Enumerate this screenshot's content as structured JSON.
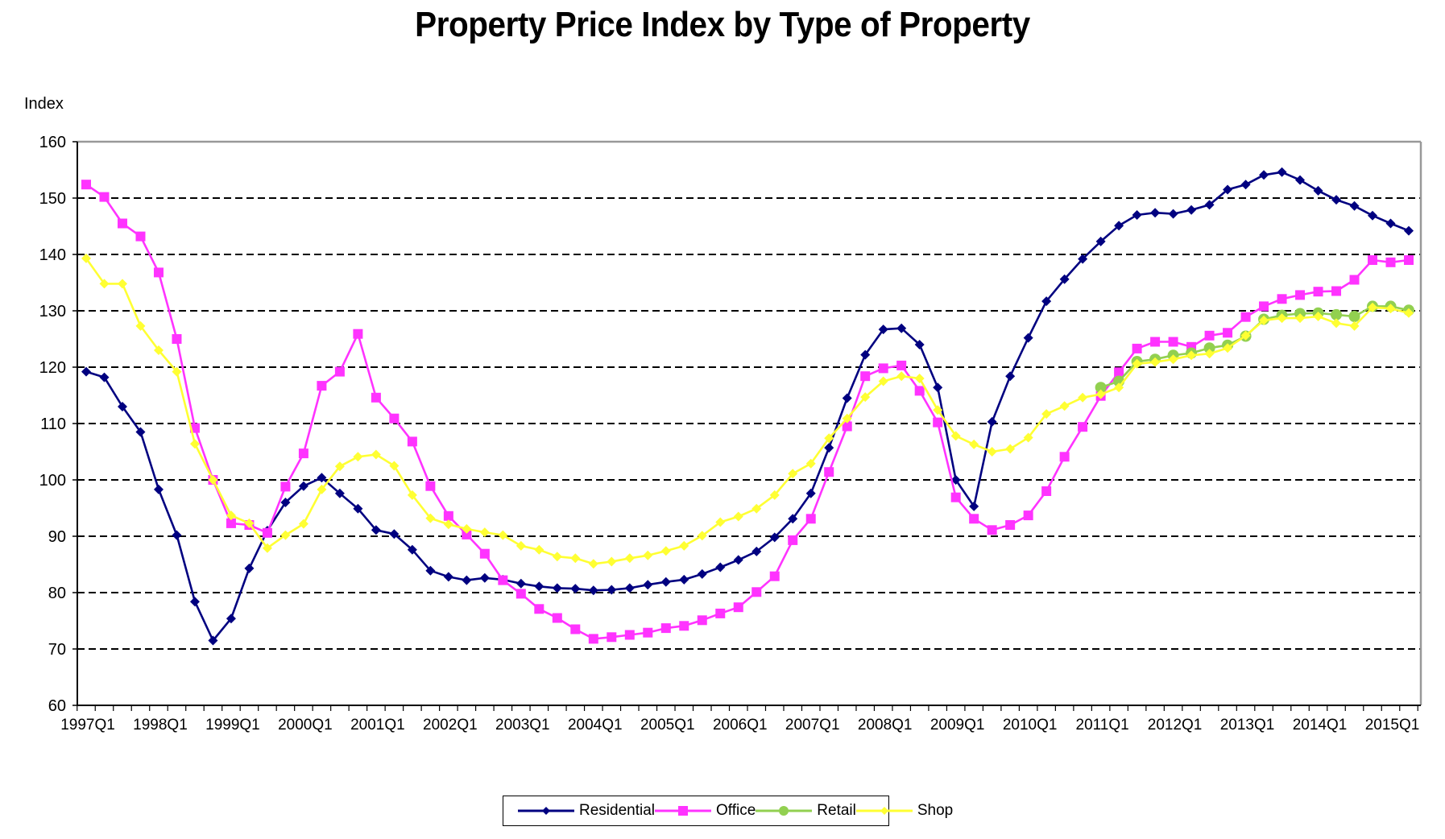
{
  "chart_data": {
    "type": "line",
    "title": "Property Price Index by Type of Property",
    "xlabel": "",
    "ylabel": "Index",
    "ylim": [
      60,
      160
    ],
    "yticks": [
      60,
      70,
      80,
      90,
      100,
      110,
      120,
      130,
      140,
      150,
      160
    ],
    "grid": "horizontal dashed",
    "legend_position": "bottom",
    "x": [
      "1997Q1",
      "1997Q2",
      "1997Q3",
      "1997Q4",
      "1998Q1",
      "1998Q2",
      "1998Q3",
      "1998Q4",
      "1999Q1",
      "1999Q2",
      "1999Q3",
      "1999Q4",
      "2000Q1",
      "2000Q2",
      "2000Q3",
      "2000Q4",
      "2001Q1",
      "2001Q2",
      "2001Q3",
      "2001Q4",
      "2002Q1",
      "2002Q2",
      "2002Q3",
      "2002Q4",
      "2003Q1",
      "2003Q2",
      "2003Q3",
      "2003Q4",
      "2004Q1",
      "2004Q2",
      "2004Q3",
      "2004Q4",
      "2005Q1",
      "2005Q2",
      "2005Q3",
      "2005Q4",
      "2006Q1",
      "2006Q2",
      "2006Q3",
      "2006Q4",
      "2007Q1",
      "2007Q2",
      "2007Q3",
      "2007Q4",
      "2008Q1",
      "2008Q2",
      "2008Q3",
      "2008Q4",
      "2009Q1",
      "2009Q2",
      "2009Q3",
      "2009Q4",
      "2010Q1",
      "2010Q2",
      "2010Q3",
      "2010Q4",
      "2011Q1",
      "2011Q2",
      "2011Q3",
      "2011Q4",
      "2012Q1",
      "2012Q2",
      "2012Q3",
      "2012Q4",
      "2013Q1",
      "2013Q2",
      "2013Q3",
      "2013Q4",
      "2014Q1",
      "2014Q2",
      "2014Q3",
      "2014Q4",
      "2015Q1",
      "2015Q2"
    ],
    "xtick_labels": [
      "1997Q1",
      "1998Q1",
      "1999Q1",
      "2000Q1",
      "2001Q1",
      "2002Q1",
      "2003Q1",
      "2004Q1",
      "2005Q1",
      "2006Q1",
      "2007Q1",
      "2008Q1",
      "2009Q1",
      "2010Q1",
      "2011Q1",
      "2012Q1",
      "2013Q1",
      "2014Q1",
      "2015Q1"
    ],
    "series": [
      {
        "name": "Residential",
        "color": "#000080",
        "marker": "diamond",
        "values": [
          119.2,
          118.2,
          113.0,
          108.5,
          98.3,
          90.2,
          78.4,
          71.5,
          75.4,
          84.3,
          91.0,
          96.0,
          98.9,
          100.4,
          97.6,
          94.9,
          91.1,
          90.4,
          87.6,
          83.9,
          82.8,
          82.2,
          82.6,
          82.3,
          81.6,
          81.1,
          80.8,
          80.7,
          80.4,
          80.5,
          80.8,
          81.4,
          81.9,
          82.3,
          83.3,
          84.5,
          85.8,
          87.3,
          89.8,
          93.1,
          97.6,
          105.7,
          114.5,
          122.2,
          126.7,
          126.9,
          124.0,
          116.4,
          100.0,
          95.3,
          110.3,
          118.4,
          125.2,
          131.7,
          135.6,
          139.2,
          142.3,
          145.1,
          147.0,
          147.4,
          147.2,
          147.9,
          148.8,
          151.5,
          152.4,
          154.1,
          154.6,
          153.2,
          151.3,
          149.7,
          148.6,
          146.9,
          145.5,
          144.2
        ]
      },
      {
        "name": "Office",
        "color": "#FF33FF",
        "marker": "square",
        "values": [
          152.4,
          150.2,
          145.5,
          143.2,
          136.8,
          125.0,
          109.2,
          100.0,
          92.3,
          92.0,
          90.6,
          98.8,
          104.7,
          116.7,
          119.2,
          125.9,
          114.6,
          110.9,
          106.8,
          98.9,
          93.6,
          90.3,
          86.9,
          82.2,
          79.8,
          77.1,
          75.5,
          73.5,
          71.8,
          72.1,
          72.5,
          72.9,
          73.7,
          74.1,
          75.1,
          76.3,
          77.4,
          80.1,
          82.9,
          89.3,
          93.1,
          101.4,
          109.5,
          118.4,
          119.8,
          120.3,
          115.8,
          110.2,
          96.9,
          93.1,
          91.1,
          92.0,
          93.7,
          98.0,
          104.1,
          109.4,
          114.9,
          119.1,
          123.3,
          124.5,
          124.5,
          123.6,
          125.6,
          126.1,
          128.9,
          130.8,
          132.1,
          132.8,
          133.4,
          133.5,
          135.5,
          139.0,
          138.6,
          139.0
        ]
      },
      {
        "name": "Retail",
        "color": "#92D050",
        "marker": "circle",
        "values": [
          null,
          null,
          null,
          null,
          null,
          null,
          null,
          null,
          null,
          null,
          null,
          null,
          null,
          null,
          null,
          null,
          null,
          null,
          null,
          null,
          null,
          null,
          null,
          null,
          null,
          null,
          null,
          null,
          null,
          null,
          null,
          null,
          null,
          null,
          null,
          null,
          null,
          null,
          null,
          null,
          null,
          null,
          null,
          null,
          null,
          null,
          null,
          null,
          null,
          null,
          null,
          null,
          null,
          null,
          null,
          null,
          116.4,
          117.5,
          121.0,
          121.4,
          122.1,
          122.5,
          123.4,
          123.9,
          125.5,
          128.5,
          129.2,
          129.5,
          129.6,
          129.3,
          129.0,
          130.8,
          130.8,
          130.1
        ]
      },
      {
        "name": "Shop",
        "color": "#FFFF33",
        "marker": "diamond",
        "values": [
          139.3,
          134.8,
          134.8,
          127.3,
          123.0,
          119.2,
          106.4,
          100.0,
          93.7,
          92.3,
          87.9,
          90.2,
          92.2,
          98.3,
          102.4,
          104.1,
          104.5,
          102.5,
          97.3,
          93.2,
          92.1,
          91.3,
          90.7,
          90.2,
          88.3,
          87.6,
          86.4,
          86.1,
          85.1,
          85.5,
          86.1,
          86.6,
          87.4,
          88.3,
          90.1,
          92.5,
          93.5,
          94.9,
          97.3,
          101.1,
          102.9,
          107.4,
          110.9,
          114.7,
          117.5,
          118.4,
          118.0,
          112.4,
          107.8,
          106.3,
          105.0,
          105.5,
          107.5,
          111.7,
          113.1,
          114.6,
          115.2,
          116.4,
          120.6,
          120.9,
          121.4,
          122.1,
          122.4,
          123.4,
          125.6,
          128.3,
          128.7,
          128.7,
          129.0,
          127.8,
          127.3,
          130.6,
          130.4,
          129.6
        ]
      }
    ]
  }
}
